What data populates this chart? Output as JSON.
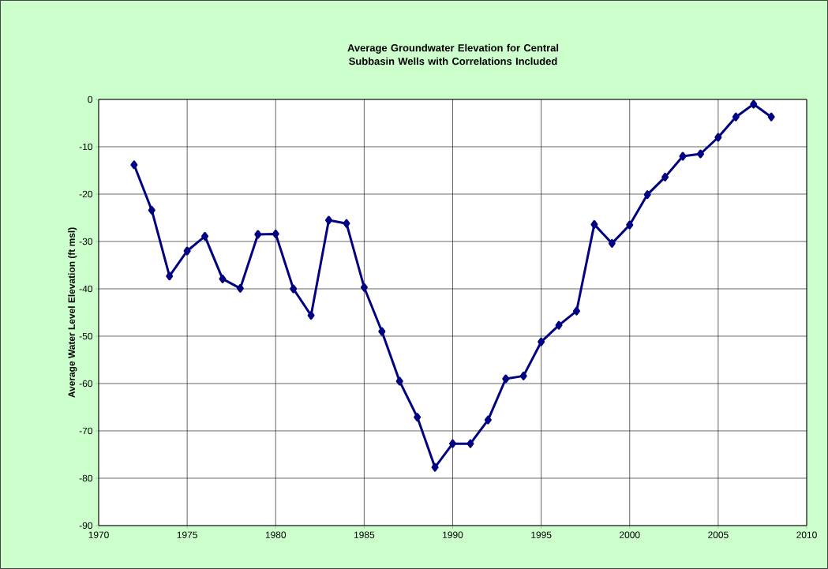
{
  "chart_data": {
    "type": "line",
    "title": "Average Groundwater Elevation for Central Subbasin Wells with Correlations Included",
    "ylabel": "Average Water Level Elevation (ft msl)",
    "x": [
      1972,
      1973,
      1974,
      1975,
      1976,
      1977,
      1978,
      1979,
      1980,
      1981,
      1982,
      1983,
      1984,
      1985,
      1986,
      1987,
      1988,
      1989,
      1990,
      1991,
      1992,
      1993,
      1994,
      1995,
      1996,
      1997,
      1998,
      1999,
      2000,
      2001,
      2002,
      2003,
      2004,
      2005,
      2006,
      2007,
      2008
    ],
    "series": [
      {
        "color": "#000080",
        "values": [
          -13.8,
          -23.4,
          -37.3,
          -32.0,
          -28.9,
          -37.9,
          -39.9,
          -28.5,
          -28.4,
          -40.0,
          -45.6,
          -25.5,
          -26.2,
          -39.7,
          -49.0,
          -59.5,
          -67.1,
          -77.7,
          -72.7,
          -72.7,
          -67.7,
          -59.0,
          -58.4,
          -51.2,
          -47.7,
          -44.7,
          -26.4,
          -30.4,
          -26.5,
          -20.1,
          -16.4,
          -12.0,
          -11.5,
          -8.0,
          -3.7,
          -1.0,
          -3.7
        ]
      }
    ],
    "xlim": [
      1970,
      2010
    ],
    "xticks": [
      1970,
      1975,
      1980,
      1985,
      1990,
      1995,
      2000,
      2005,
      2010
    ],
    "ylim": [
      -90,
      0
    ],
    "yticks": [
      -90,
      -80,
      -70,
      -60,
      -50,
      -40,
      -30,
      -20,
      -10,
      0
    ],
    "grid": true,
    "marker": "diamond",
    "line_style": "solid"
  }
}
